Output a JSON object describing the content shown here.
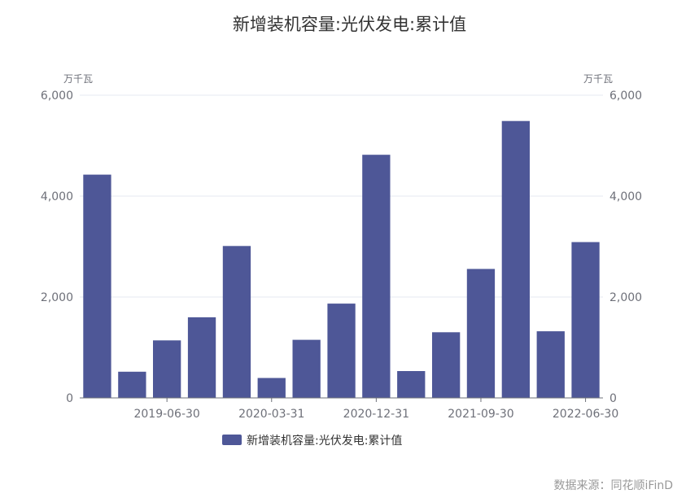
{
  "chart_data": {
    "type": "bar",
    "title": "新增装机容量:光伏发电:累计值",
    "left_unit": "万千瓦",
    "right_unit": "万千瓦",
    "ylim": [
      0,
      6000
    ],
    "y_ticks": [
      0,
      2000,
      4000,
      6000
    ],
    "y_tick_labels": [
      "0",
      "2,000",
      "4,000",
      "6,000"
    ],
    "x_tick_labels": [
      "2019-06-30",
      "2020-03-31",
      "2020-12-31",
      "2021-09-30",
      "2022-06-30"
    ],
    "categories": [
      "2018-12-31",
      "2019-03-31",
      "2019-06-30",
      "2019-09-30",
      "2019-12-31",
      "2020-03-31",
      "2020-06-30",
      "2020-09-30",
      "2020-12-31",
      "2021-03-31",
      "2021-06-30",
      "2021-09-30",
      "2021-12-31",
      "2022-03-31",
      "2022-06-30"
    ],
    "series": [
      {
        "name": "新增装机容量:光伏发电:累计值",
        "color": "#4e5797",
        "values": [
          4426,
          520,
          1140,
          1599,
          3011,
          395,
          1152,
          1870,
          4820,
          533,
          1301,
          2556,
          5488,
          1321,
          3088
        ]
      }
    ],
    "grid": true,
    "legend_position": "bottom"
  },
  "source": "数据来源：同花顺iFinD"
}
